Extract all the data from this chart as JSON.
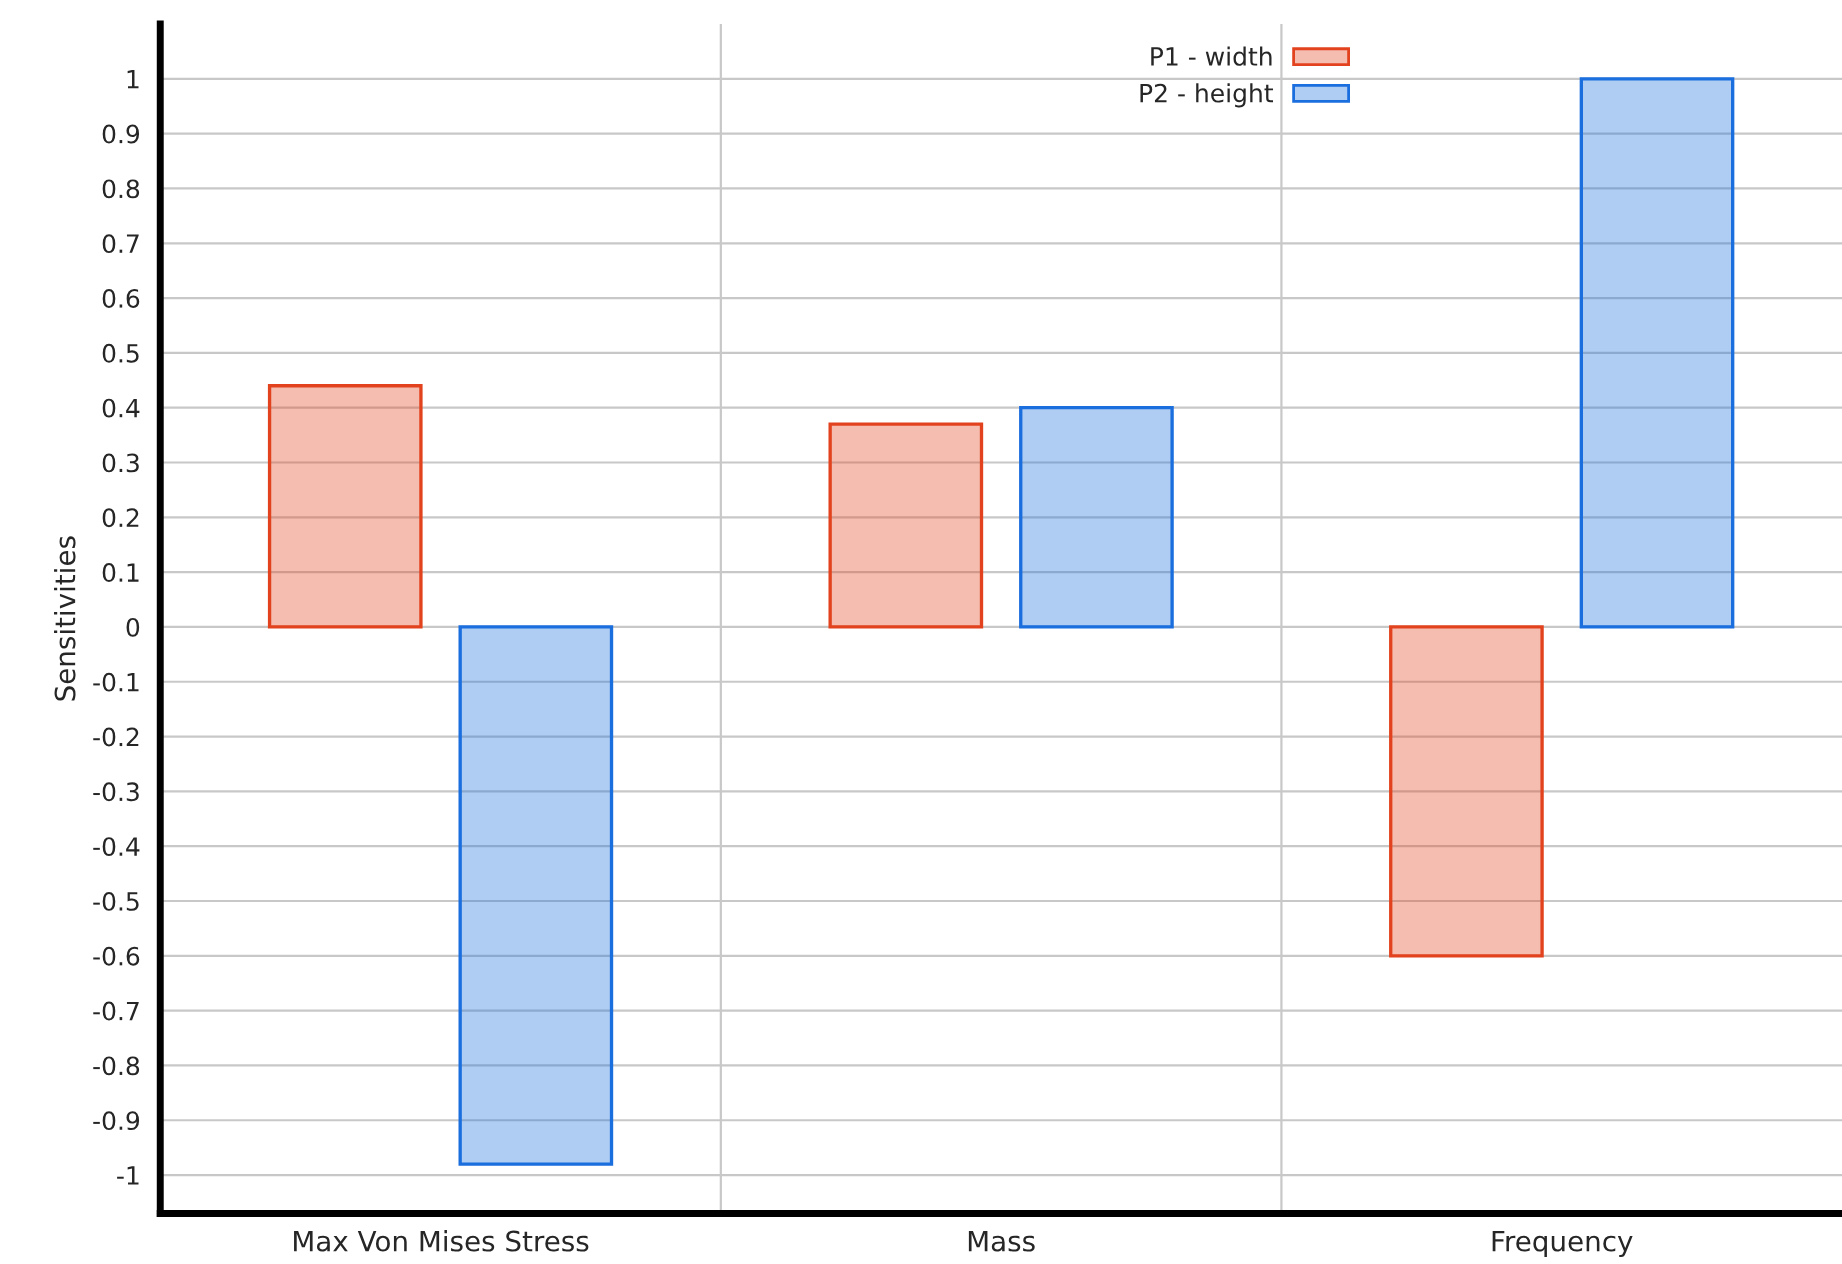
{
  "chart_data": {
    "type": "bar",
    "ylabel": "Sensitivities",
    "categories": [
      "Max Von Mises Stress",
      "Mass",
      "Frequency"
    ],
    "series": [
      {
        "name": "P1 - width",
        "color": "#e2431e",
        "values": [
          0.44,
          0.37,
          -0.6
        ]
      },
      {
        "name": "P2 - height",
        "color": "#1a6ede",
        "values": [
          -0.98,
          0.4,
          1.0
        ]
      }
    ],
    "ylim": [
      -1.07,
      1.1
    ],
    "yticks": [
      -1,
      -0.9,
      -0.8,
      -0.7,
      -0.6,
      -0.5,
      -0.4,
      -0.3,
      -0.2,
      -0.1,
      0,
      0.1,
      0.2,
      0.3,
      0.4,
      0.5,
      0.6,
      0.7,
      0.8,
      0.9,
      1
    ],
    "grid": true,
    "legend": "top right"
  }
}
